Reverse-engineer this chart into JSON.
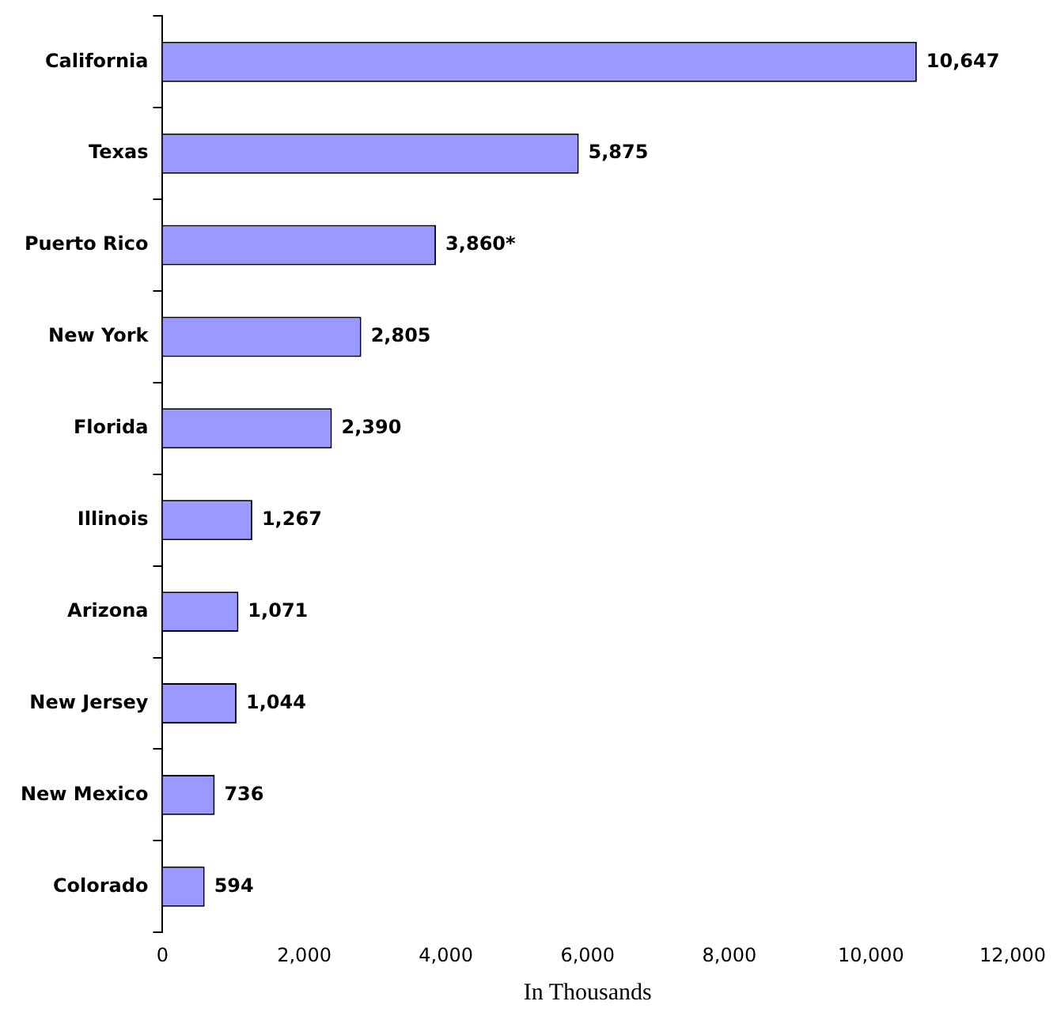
{
  "chart_data": {
    "type": "bar",
    "orientation": "horizontal",
    "xlabel": "In Thousands",
    "categories": [
      "California",
      "Texas",
      "Puerto Rico",
      "New York",
      "Florida",
      "Illinois",
      "Arizona",
      "New Jersey",
      "New Mexico",
      "Colorado"
    ],
    "values": [
      10647,
      5875,
      3860,
      2805,
      2390,
      1267,
      1071,
      1044,
      736,
      594
    ],
    "value_labels": [
      "10,647",
      "5,875",
      "3,860*",
      "2,805",
      "2,390",
      "1,267",
      "1,071",
      "1,044",
      "736",
      "594"
    ],
    "color": "#9999ff",
    "xlim": [
      0,
      12000
    ],
    "xticks": [
      {
        "value": 0,
        "label": "0"
      },
      {
        "value": 2000,
        "label": "2,000"
      },
      {
        "value": 4000,
        "label": "4,000"
      },
      {
        "value": 6000,
        "label": "6,000"
      },
      {
        "value": 8000,
        "label": "8,000"
      },
      {
        "value": 10000,
        "label": "10,000"
      },
      {
        "value": 12000,
        "label": "12,000"
      }
    ],
    "grid": false,
    "legend": false
  }
}
